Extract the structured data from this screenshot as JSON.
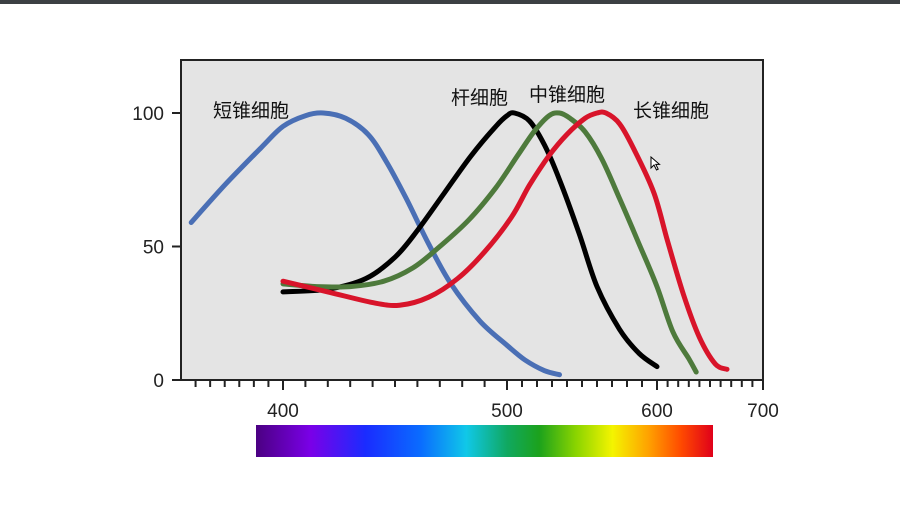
{
  "chart_data": {
    "type": "line",
    "title": "",
    "xlabel": "",
    "ylabel": "",
    "xlim": [
      330,
      700
    ],
    "ylim": [
      0,
      120
    ],
    "x_ticks": [
      400,
      500,
      600,
      700
    ],
    "y_ticks": [
      0,
      50,
      100
    ],
    "background_color": "#e4e4e4",
    "spectrum_bar": true,
    "series": [
      {
        "name": "短锥细胞",
        "color": "#4a6fb5",
        "x": [
          337,
          360,
          385,
          400,
          410,
          418,
          428,
          438,
          446,
          455,
          465,
          475,
          488,
          500,
          512,
          525,
          535
        ],
        "y": [
          59,
          73,
          87,
          95,
          99,
          100,
          98,
          92,
          82,
          68,
          51,
          36,
          22,
          13,
          7.5,
          3.5,
          2
        ]
      },
      {
        "name": "杆细胞",
        "color": "#000000",
        "x": [
          400,
          420,
          437,
          450,
          460,
          472,
          484,
          495,
          500,
          505,
          515,
          525,
          535,
          548,
          560,
          575,
          588,
          600
        ],
        "y": [
          33,
          34,
          38,
          46,
          56,
          70,
          84,
          95,
          99,
          100,
          97,
          88,
          75,
          55,
          35,
          19,
          10,
          5
        ]
      },
      {
        "name": "中锥细胞",
        "color": "#4e7a3c",
        "x": [
          400,
          415,
          430,
          445,
          458,
          470,
          483,
          495,
          507,
          518,
          528,
          535,
          542,
          552,
          563,
          575,
          588,
          600,
          615,
          630,
          637
        ],
        "y": [
          36,
          35,
          35,
          37,
          42,
          50,
          60,
          72,
          84,
          93,
          99,
          100,
          98,
          93,
          83,
          68,
          51,
          35,
          18,
          8,
          3
        ]
      },
      {
        "name": "长锥细胞",
        "color": "#d8142a",
        "x": [
          400,
          420,
          440,
          452,
          465,
          478,
          490,
          503,
          515,
          528,
          540,
          552,
          560,
          566,
          575,
          585,
          598,
          610,
          625,
          640,
          655,
          666
        ],
        "y": [
          37,
          33,
          29,
          28,
          31,
          38,
          48,
          61,
          73,
          84,
          92,
          98,
          100,
          100,
          96,
          86,
          70,
          52,
          32,
          16,
          6,
          4
        ]
      }
    ]
  }
}
